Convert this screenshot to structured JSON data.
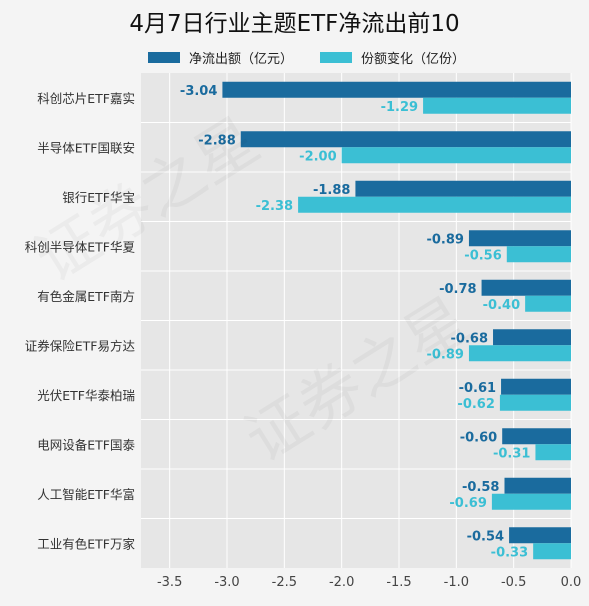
{
  "chart_data": {
    "type": "bar",
    "orientation": "horizontal",
    "title": "4月7日行业主题ETF净流出前10",
    "categories": [
      "科创芯片ETF嘉实",
      "半导体ETF国联安",
      "银行ETF华宝",
      "科创半导体ETF华夏",
      "有色金属ETF南方",
      "证券保险ETF易方达",
      "光伏ETF华泰柏瑞",
      "电网设备ETF国泰",
      "人工智能ETF华富",
      "工业有色ETF万家"
    ],
    "series": [
      {
        "name": "净流出额（亿元）",
        "color": "#1a6b9e",
        "values": [
          -3.04,
          -2.88,
          -1.88,
          -0.89,
          -0.78,
          -0.68,
          -0.61,
          -0.6,
          -0.58,
          -0.54
        ],
        "labels": [
          "-3.04",
          "-2.88",
          "-1.88",
          "-0.89",
          "-0.78",
          "-0.68",
          "-0.61",
          "-0.60",
          "-0.58",
          "-0.54"
        ]
      },
      {
        "name": "份额变化（亿份）",
        "color": "#3bbfd4",
        "values": [
          -1.29,
          -2.0,
          -2.38,
          -0.56,
          -0.4,
          -0.89,
          -0.62,
          -0.31,
          -0.69,
          -0.33
        ],
        "labels": [
          "-1.29",
          "-2.00",
          "-2.38",
          "-0.56",
          "-0.40",
          "-0.89",
          "-0.62",
          "-0.31",
          "-0.69",
          "-0.33"
        ]
      }
    ],
    "xlim": [
      -3.75,
      0
    ],
    "xticks": [
      -3.5,
      -3.0,
      -2.5,
      -2.0,
      -1.5,
      -1.0,
      -0.5,
      0.0
    ],
    "xtick_labels": [
      "-3.5",
      "-3.0",
      "-2.5",
      "-2.0",
      "-1.5",
      "-1.0",
      "-0.5",
      "0.0"
    ],
    "grid": true,
    "legend_position": "top"
  },
  "watermark_text": "证券之星"
}
